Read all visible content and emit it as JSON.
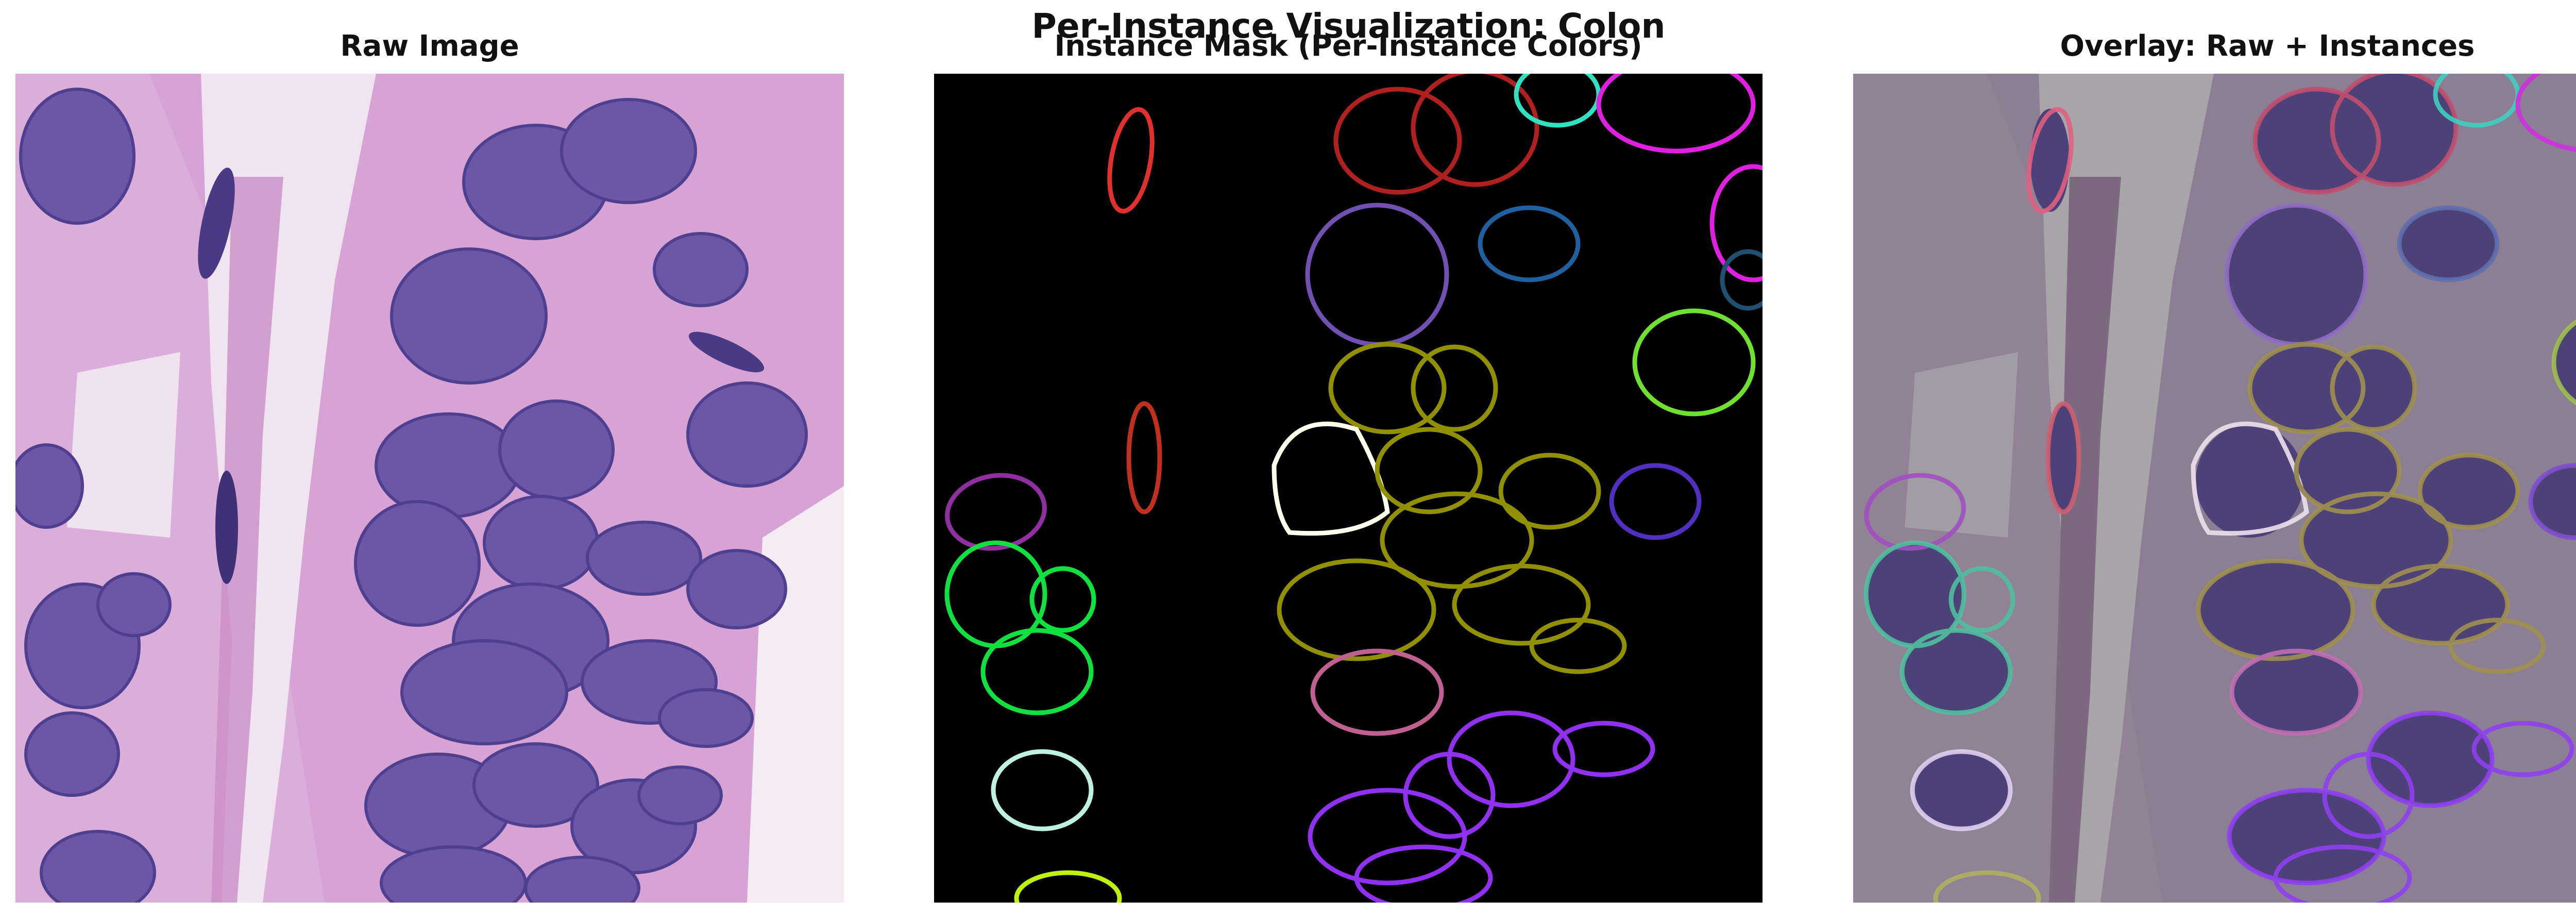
{
  "figure": {
    "title": "Per-Instance Visualization: Colon"
  },
  "panels": [
    {
      "title": "Raw Image"
    },
    {
      "title": "Instance Mask (Per-Instance Colors)"
    },
    {
      "title": "Overlay: Raw + Instances"
    }
  ],
  "colors": {
    "tissue_pink": "#d9a6d6",
    "tissue_light": "#efe3f1",
    "nucleus_purple": "#6b56a8",
    "nucleus_dark": "#4a3a86",
    "mask_background": "#000000",
    "overlay_tint": "#8c7f8d"
  }
}
